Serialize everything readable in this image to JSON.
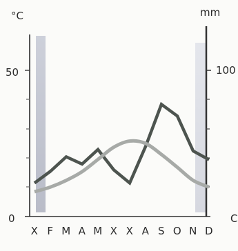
{
  "chart_data": {
    "type": "line",
    "title": "",
    "categories": [
      "X",
      "F",
      "M",
      "A",
      "M",
      "X",
      "X",
      "A",
      "S",
      "O",
      "N",
      "D"
    ],
    "left_axis": {
      "unit": "°C",
      "range": [
        0,
        62
      ],
      "ticks": [
        0,
        50
      ]
    },
    "right_axis": {
      "unit": "mm",
      "range": [
        0,
        124
      ],
      "ticks": [
        100
      ],
      "partial_tick_label": "C"
    },
    "series": [
      {
        "axis": "right",
        "color": "#4d544f",
        "values": [
          23,
          31,
          41,
          36,
          46,
          32,
          23,
          48,
          77,
          69,
          45,
          39
        ]
      },
      {
        "axis": "left",
        "color": "#a7aaa7",
        "values": [
          8.5,
          10.1,
          12.4,
          15.4,
          19.6,
          23.8,
          25.9,
          25.1,
          21.3,
          16.9,
          12.4,
          10.1
        ]
      }
    ],
    "shaded_bands": [
      {
        "from": "X",
        "side": "left",
        "color": "#c9cbd6"
      },
      {
        "from": "D",
        "side": "right",
        "color": "#dcdee6"
      }
    ],
    "grid": false,
    "legend": "none"
  }
}
